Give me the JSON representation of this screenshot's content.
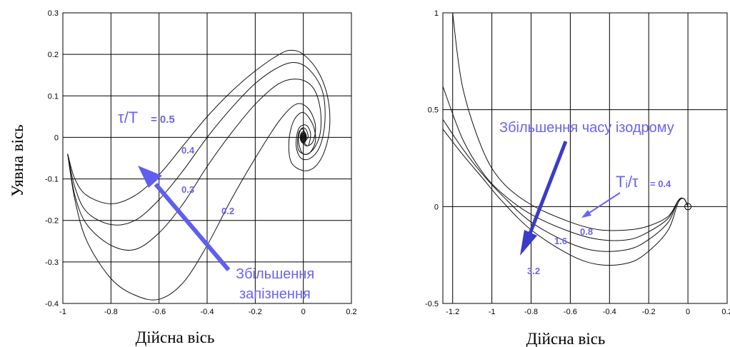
{
  "chart_data": [
    {
      "type": "line",
      "title": "",
      "xlabel": "Дійсна вісь",
      "ylabel": "Уявна вісь",
      "xlim": [
        -1,
        0.2
      ],
      "ylim": [
        -0.4,
        0.3
      ],
      "x_ticks": [
        "-1",
        "-0.8",
        "-0.6",
        "-0.4",
        "-0.2",
        "0",
        "0.2"
      ],
      "y_ticks": [
        "0.3",
        "0.2",
        "0.1",
        "0",
        "-0.1",
        "-0.2",
        "-0.3",
        "-0.4"
      ],
      "grid": true,
      "annotation_ratio_prefix": "τ/T",
      "annotation_ratio_value": "= 0.5",
      "arrow_label_line1": "Збільшення",
      "arrow_label_line2": "запізнення",
      "series": [
        {
          "label": "0.5",
          "points": [
            [
              -0.98,
              -0.04
            ],
            [
              -0.95,
              -0.1
            ],
            [
              -0.9,
              -0.14
            ],
            [
              -0.8,
              -0.16
            ],
            [
              -0.7,
              -0.14
            ],
            [
              -0.6,
              -0.09
            ],
            [
              -0.5,
              -0.02
            ],
            [
              -0.4,
              0.05
            ],
            [
              -0.3,
              0.11
            ],
            [
              -0.2,
              0.16
            ],
            [
              -0.1,
              0.2
            ],
            [
              -0.05,
              0.21
            ],
            [
              0.0,
              0.2
            ],
            [
              0.06,
              0.16
            ],
            [
              0.1,
              0.1
            ],
            [
              0.11,
              0.03
            ],
            [
              0.09,
              -0.03
            ],
            [
              0.05,
              -0.07
            ],
            [
              0.0,
              -0.08
            ],
            [
              -0.05,
              -0.06
            ],
            [
              -0.06,
              -0.01
            ],
            [
              -0.04,
              0.04
            ],
            [
              0.0,
              0.06
            ],
            [
              0.04,
              0.03
            ],
            [
              0.05,
              -0.01
            ],
            [
              0.02,
              -0.04
            ],
            [
              -0.02,
              -0.03
            ],
            [
              -0.02,
              0.01
            ],
            [
              0.0,
              0.02
            ],
            [
              0.01,
              0.0
            ]
          ]
        },
        {
          "label": "0.4",
          "points": [
            [
              -0.98,
              -0.04
            ],
            [
              -0.95,
              -0.12
            ],
            [
              -0.9,
              -0.18
            ],
            [
              -0.8,
              -0.21
            ],
            [
              -0.7,
              -0.2
            ],
            [
              -0.6,
              -0.15
            ],
            [
              -0.5,
              -0.08
            ],
            [
              -0.4,
              0.0
            ],
            [
              -0.3,
              0.07
            ],
            [
              -0.2,
              0.13
            ],
            [
              -0.1,
              0.17
            ],
            [
              -0.03,
              0.18
            ],
            [
              0.03,
              0.16
            ],
            [
              0.08,
              0.11
            ],
            [
              0.09,
              0.04
            ],
            [
              0.07,
              -0.02
            ],
            [
              0.03,
              -0.05
            ],
            [
              -0.01,
              -0.05
            ],
            [
              -0.03,
              -0.02
            ],
            [
              -0.02,
              0.02
            ],
            [
              0.01,
              0.03
            ],
            [
              0.03,
              0.01
            ],
            [
              0.02,
              -0.02
            ],
            [
              0.0,
              -0.01
            ]
          ]
        },
        {
          "label": "0.3",
          "points": [
            [
              -0.98,
              -0.04
            ],
            [
              -0.95,
              -0.14
            ],
            [
              -0.9,
              -0.21
            ],
            [
              -0.8,
              -0.26
            ],
            [
              -0.7,
              -0.27
            ],
            [
              -0.6,
              -0.23
            ],
            [
              -0.5,
              -0.16
            ],
            [
              -0.4,
              -0.07
            ],
            [
              -0.3,
              0.01
            ],
            [
              -0.2,
              0.08
            ],
            [
              -0.1,
              0.13
            ],
            [
              -0.02,
              0.14
            ],
            [
              0.04,
              0.12
            ],
            [
              0.07,
              0.07
            ],
            [
              0.07,
              0.01
            ],
            [
              0.04,
              -0.03
            ],
            [
              0.0,
              -0.04
            ],
            [
              -0.02,
              -0.01
            ],
            [
              -0.01,
              0.02
            ],
            [
              0.01,
              0.02
            ],
            [
              0.02,
              0.0
            ],
            [
              0.0,
              -0.01
            ]
          ]
        },
        {
          "label": "0.2",
          "points": [
            [
              -0.98,
              -0.04
            ],
            [
              -0.95,
              -0.15
            ],
            [
              -0.9,
              -0.25
            ],
            [
              -0.8,
              -0.34
            ],
            [
              -0.7,
              -0.38
            ],
            [
              -0.6,
              -0.39
            ],
            [
              -0.5,
              -0.35
            ],
            [
              -0.4,
              -0.26
            ],
            [
              -0.3,
              -0.15
            ],
            [
              -0.2,
              -0.05
            ],
            [
              -0.1,
              0.04
            ],
            [
              -0.03,
              0.08
            ],
            [
              0.02,
              0.07
            ],
            [
              0.05,
              0.03
            ],
            [
              0.04,
              -0.01
            ],
            [
              0.01,
              -0.02
            ],
            [
              -0.01,
              0.0
            ],
            [
              0.0,
              0.01
            ],
            [
              0.01,
              0.0
            ]
          ]
        }
      ]
    },
    {
      "type": "line",
      "title": "",
      "xlabel": "Дійсна вісь",
      "ylabel": "",
      "xlim": [
        -1.25,
        0.2
      ],
      "ylim": [
        -0.5,
        1
      ],
      "x_ticks": [
        "-1.2",
        "-1",
        "-0.8",
        "-0.6",
        "-0.4",
        "-0.2",
        "0",
        "0.2"
      ],
      "y_ticks": [
        "1",
        "0.5",
        "0",
        "-0.5"
      ],
      "grid": true,
      "annotation_ratio_prefix": "Tᵢ/τ",
      "annotation_ratio_value": "= 0.4",
      "arrow_label": "Збільшення часу ізодрому",
      "series": [
        {
          "label": "0.4",
          "points": [
            [
              -1.2,
              1.0
            ],
            [
              -1.15,
              0.62
            ],
            [
              -1.05,
              0.3
            ],
            [
              -0.95,
              0.13
            ],
            [
              -0.8,
              0.01
            ],
            [
              -0.6,
              -0.08
            ],
            [
              -0.45,
              -0.12
            ],
            [
              -0.3,
              -0.12
            ],
            [
              -0.2,
              -0.1
            ],
            [
              -0.1,
              -0.05
            ],
            [
              -0.05,
              0.03
            ],
            [
              -0.02,
              0.04
            ],
            [
              0.0,
              0.0
            ]
          ]
        },
        {
          "label": "0.8",
          "points": [
            [
              -1.25,
              0.62
            ],
            [
              -1.15,
              0.35
            ],
            [
              -1.05,
              0.18
            ],
            [
              -0.95,
              0.07
            ],
            [
              -0.8,
              -0.04
            ],
            [
              -0.6,
              -0.13
            ],
            [
              -0.45,
              -0.17
            ],
            [
              -0.3,
              -0.17
            ],
            [
              -0.2,
              -0.13
            ],
            [
              -0.1,
              -0.06
            ],
            [
              -0.05,
              0.03
            ],
            [
              -0.02,
              0.04
            ],
            [
              0.0,
              0.0
            ]
          ]
        },
        {
          "label": "1.6",
          "points": [
            [
              -1.25,
              0.45
            ],
            [
              -1.15,
              0.3
            ],
            [
              -1.05,
              0.17
            ],
            [
              -0.95,
              0.06
            ],
            [
              -0.8,
              -0.08
            ],
            [
              -0.6,
              -0.19
            ],
            [
              -0.45,
              -0.23
            ],
            [
              -0.3,
              -0.22
            ],
            [
              -0.2,
              -0.17
            ],
            [
              -0.1,
              -0.08
            ],
            [
              -0.05,
              0.03
            ],
            [
              -0.02,
              0.04
            ],
            [
              0.0,
              0.0
            ]
          ]
        },
        {
          "label": "3.2",
          "points": [
            [
              -1.25,
              0.4
            ],
            [
              -1.15,
              0.27
            ],
            [
              -1.05,
              0.15
            ],
            [
              -0.95,
              0.03
            ],
            [
              -0.8,
              -0.12
            ],
            [
              -0.6,
              -0.25
            ],
            [
              -0.45,
              -0.3
            ],
            [
              -0.3,
              -0.29
            ],
            [
              -0.2,
              -0.23
            ],
            [
              -0.1,
              -0.12
            ],
            [
              -0.05,
              0.02
            ],
            [
              -0.02,
              0.04
            ],
            [
              0.0,
              0.0
            ]
          ]
        }
      ]
    }
  ],
  "colors": {
    "annotation": "#6a63f5",
    "arrow": "#5e5ef0",
    "arrow_dark": "#3b3bc8",
    "grid": "#000000"
  }
}
